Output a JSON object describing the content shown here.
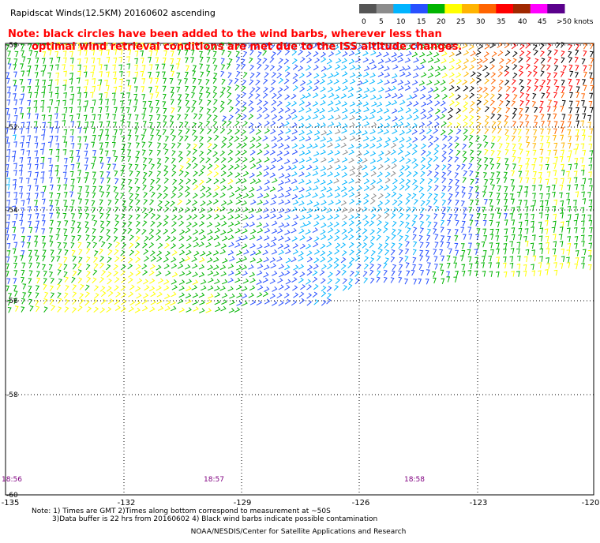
{
  "title": "Rapidscat Winds(12.5KM) 20160602 ascending",
  "note_line1": "Note: black circles have been added to the wind barbs, wherever less than",
  "note_line2": "optimal wind retrieval conditions are met due to the ISS altitude changes.",
  "legend": {
    "labels": [
      "0",
      "5",
      "10",
      "15",
      "20",
      "25",
      "30",
      "35",
      "40",
      "45",
      ">50 knots"
    ],
    "colors": [
      "#555555",
      "#8c8c8c",
      "#00b4ff",
      "#2850ff",
      "#00b400",
      "#ffff00",
      "#ffb400",
      "#ff6400",
      "#ff0000",
      "#a02800",
      "#ff00ff",
      "#5a008c"
    ]
  },
  "lat_labels": [
    "-50",
    "-52",
    "-54",
    "-56",
    "-58",
    "-60"
  ],
  "lon_labels": [
    "-135",
    "-132",
    "-129",
    "-126",
    "-123",
    "-120"
  ],
  "time_labels": [
    "18:56",
    "18:57",
    "18:58"
  ],
  "footer_line1": "Note: 1) Times are GMT 2)Times along bottom correspond to measurement at ~50S",
  "footer_line2": "3)Data buffer is 22 hrs from 20160602 4) Black wind barbs indicate possible contamination",
  "footer_line3": "NOAA/NESDIS/Center for Satellite Applications and Research",
  "colors": {
    "note_red": "#ff0000",
    "time_purple": "#800080",
    "grid": "#000000"
  }
}
